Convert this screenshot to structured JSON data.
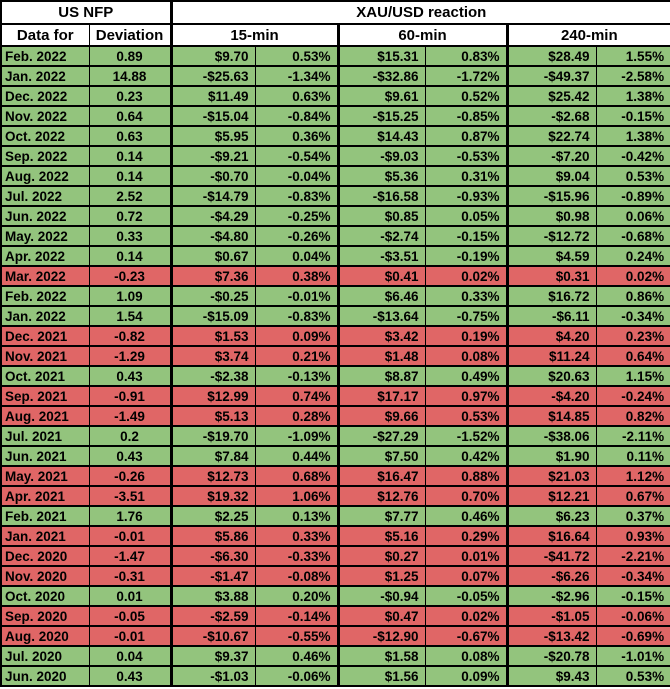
{
  "colors": {
    "green_row": "#93c47d",
    "red_row": "#e06666",
    "grid": "#000000",
    "header_bg": "#ffffff",
    "text": "#000000"
  },
  "chart_data": {
    "type": "table",
    "header": {
      "group_left": "US NFP",
      "group_right": "XAU/USD reaction",
      "sub_columns": [
        "Data for",
        "Deviation",
        "15-min",
        "60-min",
        "240-min"
      ]
    },
    "columns": [
      "Data for",
      "Deviation",
      "15-min USD",
      "15-min %",
      "60-min USD",
      "60-min %",
      "240-min USD",
      "240-min %"
    ],
    "rows": [
      {
        "color": "green",
        "cells": [
          "Feb. 2022",
          "0.89",
          "$9.70",
          "0.53%",
          "$15.31",
          "0.83%",
          "$28.49",
          "1.55%"
        ]
      },
      {
        "color": "green",
        "cells": [
          "Jan. 2022",
          "14.88",
          "-$25.63",
          "-1.34%",
          "-$32.86",
          "-1.72%",
          "-$49.37",
          "-2.58%"
        ]
      },
      {
        "color": "green",
        "cells": [
          "Dec. 2022",
          "0.23",
          "$11.49",
          "0.63%",
          "$9.61",
          "0.52%",
          "$25.42",
          "1.38%"
        ]
      },
      {
        "color": "green",
        "cells": [
          "Nov. 2022",
          "0.64",
          "-$15.04",
          "-0.84%",
          "-$15.25",
          "-0.85%",
          "-$2.68",
          "-0.15%"
        ]
      },
      {
        "color": "green",
        "cells": [
          "Oct. 2022",
          "0.63",
          "$5.95",
          "0.36%",
          "$14.43",
          "0.87%",
          "$22.74",
          "1.38%"
        ]
      },
      {
        "color": "green",
        "cells": [
          "Sep. 2022",
          "0.14",
          "-$9.21",
          "-0.54%",
          "-$9.03",
          "-0.53%",
          "-$7.20",
          "-0.42%"
        ]
      },
      {
        "color": "green",
        "cells": [
          "Aug. 2022",
          "0.14",
          "-$0.70",
          "-0.04%",
          "$5.36",
          "0.31%",
          "$9.04",
          "0.53%"
        ]
      },
      {
        "color": "green",
        "cells": [
          "Jul. 2022",
          "2.52",
          "-$14.79",
          "-0.83%",
          "-$16.58",
          "-0.93%",
          "-$15.96",
          "-0.89%"
        ]
      },
      {
        "color": "green",
        "cells": [
          "Jun. 2022",
          "0.72",
          "-$4.29",
          "-0.25%",
          "$0.85",
          "0.05%",
          "$0.98",
          "0.06%"
        ]
      },
      {
        "color": "green",
        "cells": [
          "May. 2022",
          "0.33",
          "-$4.80",
          "-0.26%",
          "-$2.74",
          "-0.15%",
          "-$12.72",
          "-0.68%"
        ]
      },
      {
        "color": "green",
        "cells": [
          "Apr. 2022",
          "0.14",
          "$0.67",
          "0.04%",
          "-$3.51",
          "-0.19%",
          "$4.59",
          "0.24%"
        ]
      },
      {
        "color": "red",
        "cells": [
          "Mar. 2022",
          "-0.23",
          "$7.36",
          "0.38%",
          "$0.41",
          "0.02%",
          "$0.31",
          "0.02%"
        ]
      },
      {
        "color": "green",
        "cells": [
          "Feb. 2022",
          "1.09",
          "-$0.25",
          "-0.01%",
          "$6.46",
          "0.33%",
          "$16.72",
          "0.86%"
        ]
      },
      {
        "color": "green",
        "cells": [
          "Jan. 2022",
          "1.54",
          "-$15.09",
          "-0.83%",
          "-$13.64",
          "-0.75%",
          "-$6.11",
          "-0.34%"
        ]
      },
      {
        "color": "red",
        "cells": [
          "Dec. 2021",
          "-0.82",
          "$1.53",
          "0.09%",
          "$3.42",
          "0.19%",
          "$4.20",
          "0.23%"
        ]
      },
      {
        "color": "red",
        "cells": [
          "Nov. 2021",
          "-1.29",
          "$3.74",
          "0.21%",
          "$1.48",
          "0.08%",
          "$11.24",
          "0.64%"
        ]
      },
      {
        "color": "green",
        "cells": [
          "Oct. 2021",
          "0.43",
          "-$2.38",
          "-0.13%",
          "$8.87",
          "0.49%",
          "$20.63",
          "1.15%"
        ]
      },
      {
        "color": "red",
        "cells": [
          "Sep. 2021",
          "-0.91",
          "$12.99",
          "0.74%",
          "$17.17",
          "0.97%",
          "-$4.20",
          "-0.24%"
        ]
      },
      {
        "color": "red",
        "cells": [
          "Aug. 2021",
          "-1.49",
          "$5.13",
          "0.28%",
          "$9.66",
          "0.53%",
          "$14.85",
          "0.82%"
        ]
      },
      {
        "color": "green",
        "cells": [
          "Jul. 2021",
          "0.2",
          "-$19.70",
          "-1.09%",
          "-$27.29",
          "-1.52%",
          "-$38.06",
          "-2.11%"
        ]
      },
      {
        "color": "green",
        "cells": [
          "Jun. 2021",
          "0.43",
          "$7.84",
          "0.44%",
          "$7.50",
          "0.42%",
          "$1.90",
          "0.11%"
        ]
      },
      {
        "color": "red",
        "cells": [
          "May. 2021",
          "-0.26",
          "$12.73",
          "0.68%",
          "$16.47",
          "0.88%",
          "$21.03",
          "1.12%"
        ]
      },
      {
        "color": "red",
        "cells": [
          "Apr. 2021",
          "-3.51",
          "$19.32",
          "1.06%",
          "$12.76",
          "0.70%",
          "$12.21",
          "0.67%"
        ]
      },
      {
        "color": "green",
        "cells": [
          "Feb. 2021",
          "1.76",
          "$2.25",
          "0.13%",
          "$7.77",
          "0.46%",
          "$6.23",
          "0.37%"
        ]
      },
      {
        "color": "red",
        "cells": [
          "Jan. 2021",
          "-0.01",
          "$5.86",
          "0.33%",
          "$5.16",
          "0.29%",
          "$16.64",
          "0.93%"
        ]
      },
      {
        "color": "red",
        "cells": [
          "Dec. 2020",
          "-1.47",
          "-$6.30",
          "-0.33%",
          "$0.27",
          "0.01%",
          "-$41.72",
          "-2.21%"
        ]
      },
      {
        "color": "red",
        "cells": [
          "Nov. 2020",
          "-0.31",
          "-$1.47",
          "-0.08%",
          "$1.25",
          "0.07%",
          "-$6.26",
          "-0.34%"
        ]
      },
      {
        "color": "green",
        "cells": [
          "Oct. 2020",
          "0.01",
          "$3.88",
          "0.20%",
          "-$0.94",
          "-0.05%",
          "-$2.96",
          "-0.15%"
        ]
      },
      {
        "color": "red",
        "cells": [
          "Sep. 2020",
          "-0.05",
          "-$2.59",
          "-0.14%",
          "$0.47",
          "0.02%",
          "-$1.05",
          "-0.06%"
        ]
      },
      {
        "color": "red",
        "cells": [
          "Aug. 2020",
          "-0.01",
          "-$10.67",
          "-0.55%",
          "-$12.90",
          "-0.67%",
          "-$13.42",
          "-0.69%"
        ]
      },
      {
        "color": "green",
        "cells": [
          "Jul. 2020",
          "0.04",
          "$9.37",
          "0.46%",
          "$1.58",
          "0.08%",
          "-$20.78",
          "-1.01%"
        ]
      },
      {
        "color": "green",
        "cells": [
          "Jun. 2020",
          "0.43",
          "-$1.03",
          "-0.06%",
          "$1.56",
          "0.09%",
          "$9.43",
          "0.53%"
        ]
      }
    ]
  }
}
